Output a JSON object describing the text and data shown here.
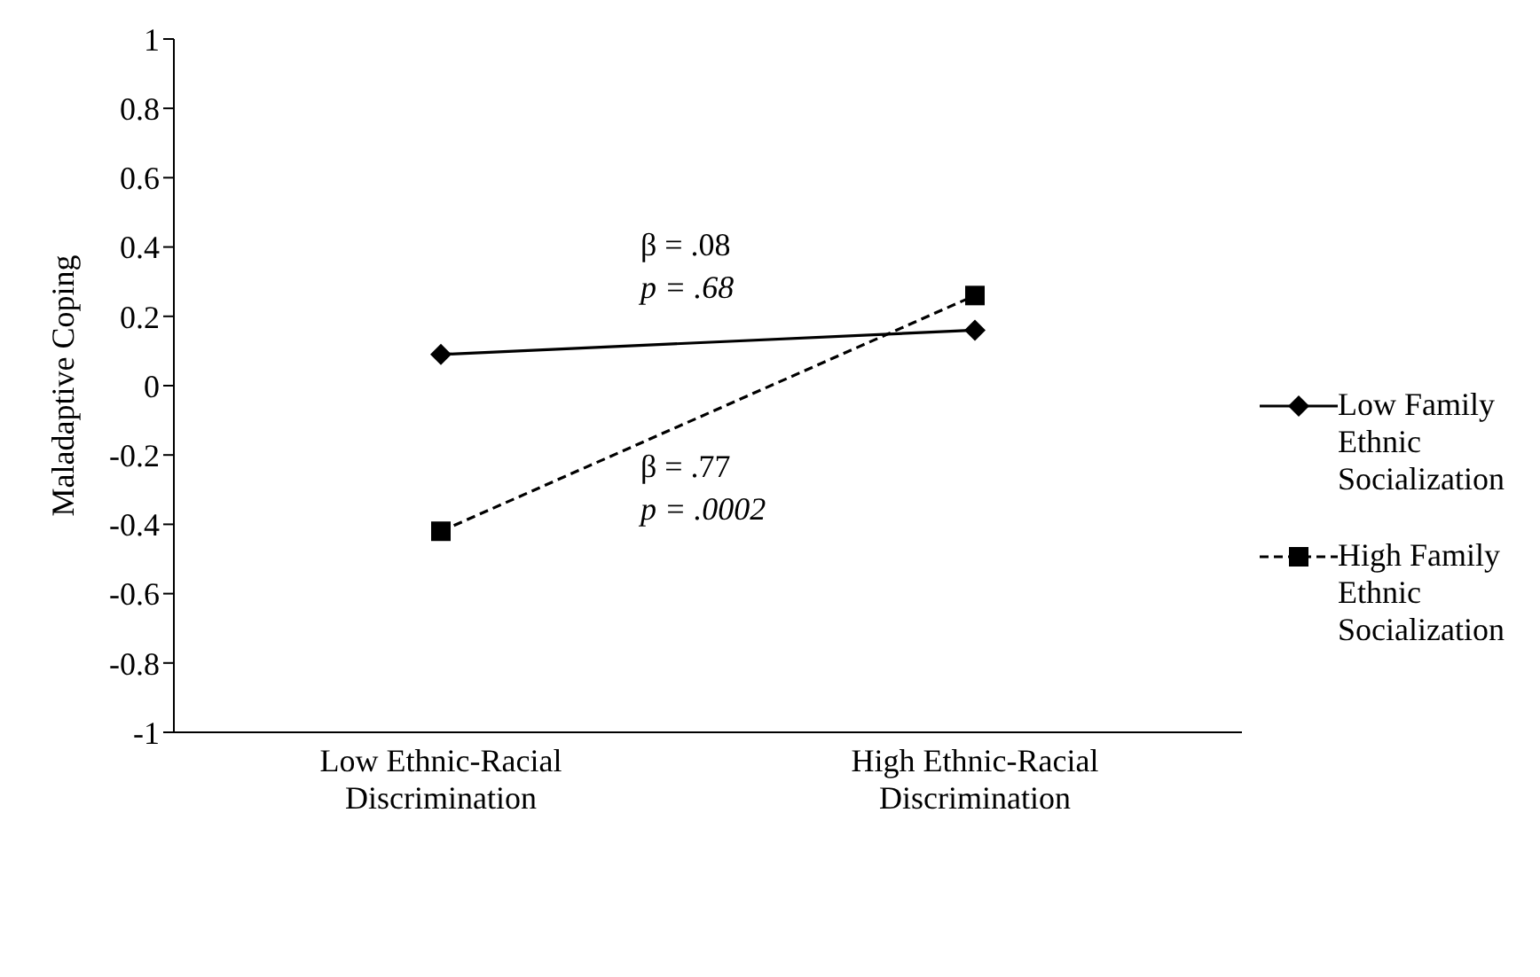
{
  "chart_data": {
    "type": "line",
    "ylabel": "Maladaptive Coping",
    "categories": [
      "Low Ethnic-Racial Discrimination",
      "High Ethnic-Racial Discrimination"
    ],
    "series": [
      {
        "name": "Low Family Ethnic Socialization",
        "color": "#000000",
        "values": [
          0.09,
          0.16
        ],
        "marker": "diamond",
        "line_style": "solid"
      },
      {
        "name": "High Family Ethnic Socialization",
        "color": "#000000",
        "values": [
          -0.42,
          0.26
        ],
        "marker": "square",
        "line_style": "dashed"
      }
    ],
    "ylim": [
      -1,
      1
    ],
    "yticks": [
      -1,
      -0.8,
      -0.6,
      -0.4,
      -0.2,
      0,
      0.2,
      0.4,
      0.6,
      0.8,
      1
    ],
    "legend": "right",
    "annotations": [
      "β = .08",
      "p = .68",
      "β = .77",
      "p = .0002"
    ]
  }
}
